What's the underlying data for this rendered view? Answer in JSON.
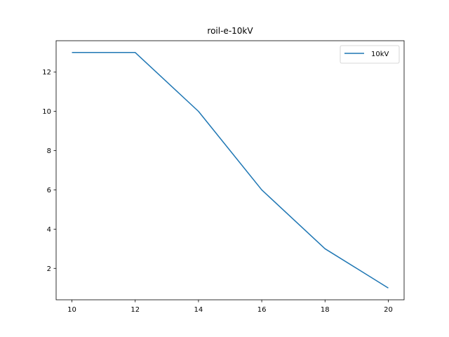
{
  "chart_data": {
    "type": "line",
    "title": "roil-e-10kV",
    "xlabel": "",
    "ylabel": "",
    "x": [
      10,
      12,
      14,
      16,
      18,
      20
    ],
    "series": [
      {
        "name": "10kV",
        "values": [
          13,
          13,
          10,
          6,
          3,
          1
        ],
        "color": "#1f77b4"
      }
    ],
    "xlim": [
      9.5,
      20.5
    ],
    "ylim": [
      0.4,
      13.6
    ],
    "xticks": [
      10,
      12,
      14,
      16,
      18,
      20
    ],
    "yticks": [
      2,
      4,
      6,
      8,
      10,
      12
    ],
    "grid": false,
    "legend_position": "top-right"
  }
}
